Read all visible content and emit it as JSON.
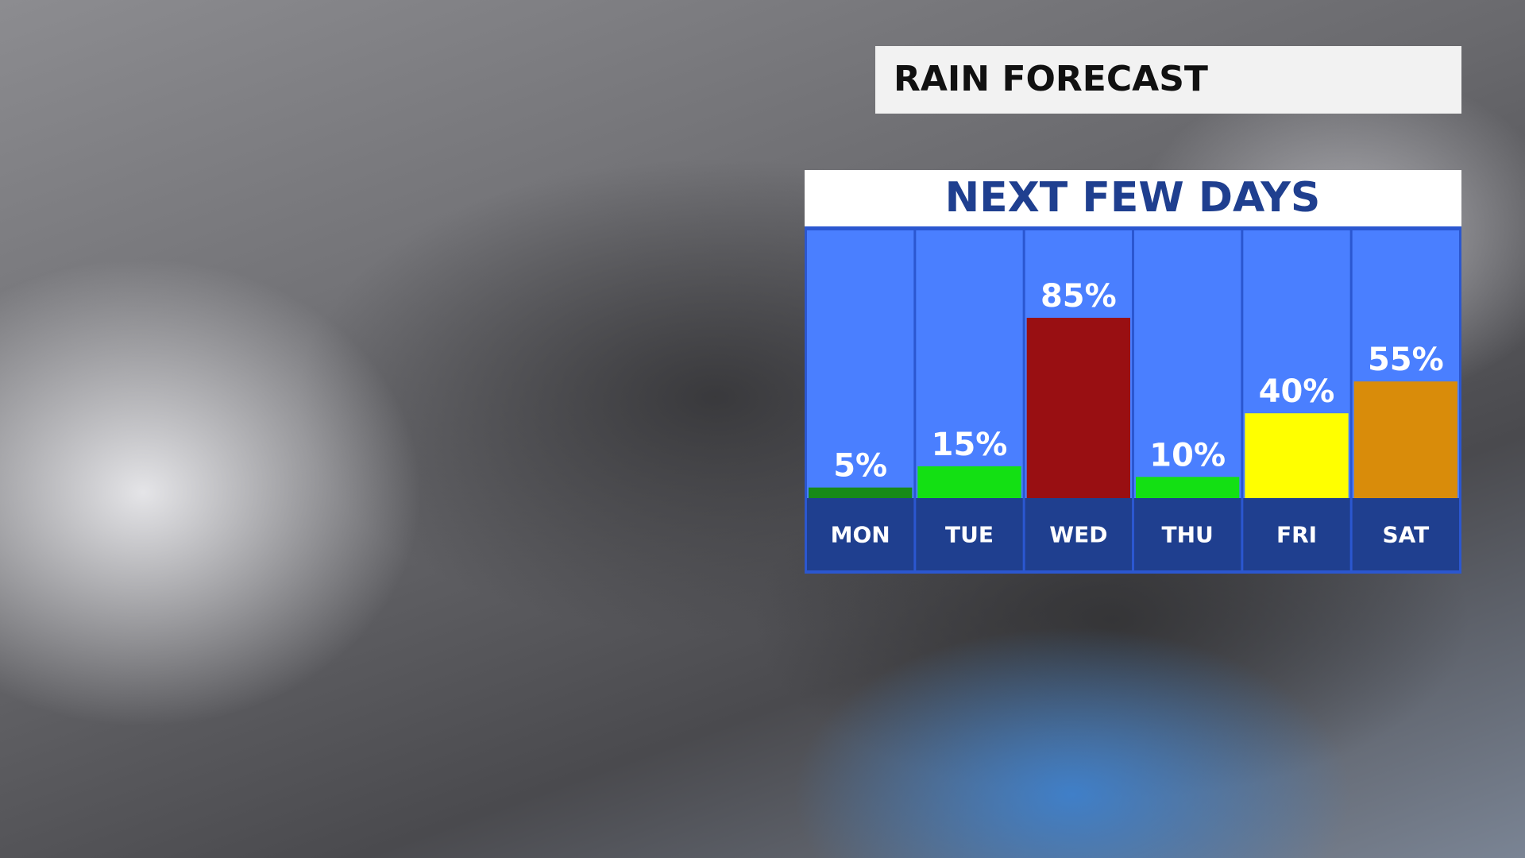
{
  "header": {
    "title": "RAIN FORECAST"
  },
  "chart_data": {
    "type": "bar",
    "title": "NEXT FEW DAYS",
    "categories": [
      "MON",
      "TUE",
      "WED",
      "THU",
      "FRI",
      "SAT"
    ],
    "values": [
      5,
      15,
      85,
      10,
      40,
      55
    ],
    "value_labels": [
      "5%",
      "15%",
      "85%",
      "10%",
      "40%",
      "55%"
    ],
    "colors": [
      "#178a17",
      "#13e013",
      "#990f12",
      "#13e013",
      "#ffff00",
      "#d98c0a"
    ]
  }
}
